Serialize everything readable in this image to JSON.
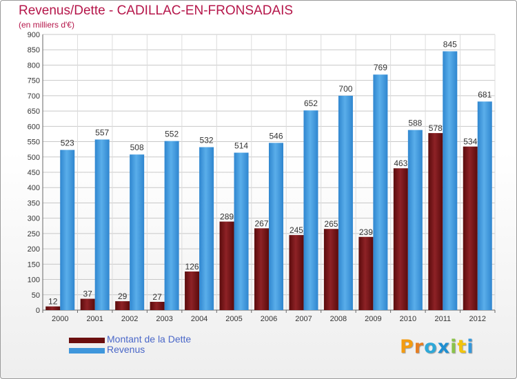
{
  "title": "Revenus/Dette - CADILLAC-EN-FRONSADAIS",
  "subtitle": "(en milliers d'€)",
  "logo_text": "Proxiti",
  "colors": {
    "title": "#b5164a",
    "dette": "#7a1418",
    "revenus": "#3f97dc",
    "legend_text": "#4a67c8"
  },
  "legend": [
    {
      "label": "Montant de la Dette",
      "color": "#6b0f0f"
    },
    {
      "label": "Revenus",
      "color": "#3f97dc"
    }
  ],
  "chart_data": {
    "type": "bar",
    "categories": [
      "2000",
      "2001",
      "2002",
      "2003",
      "2004",
      "2005",
      "2006",
      "2007",
      "2008",
      "2009",
      "2010",
      "2011",
      "2012"
    ],
    "series": [
      {
        "name": "Montant de la Dette",
        "values": [
          12,
          37,
          29,
          27,
          126,
          289,
          267,
          245,
          265,
          239,
          463,
          578,
          534
        ]
      },
      {
        "name": "Revenus",
        "values": [
          523,
          557,
          508,
          552,
          532,
          514,
          546,
          652,
          700,
          769,
          588,
          845,
          681
        ]
      }
    ],
    "y_ticks": [
      0,
      50,
      100,
      150,
      200,
      250,
      300,
      350,
      400,
      450,
      500,
      550,
      600,
      650,
      700,
      750,
      800,
      850,
      900
    ],
    "ylim": [
      0,
      900
    ],
    "grid": true,
    "legend_position": "bottom-left"
  }
}
